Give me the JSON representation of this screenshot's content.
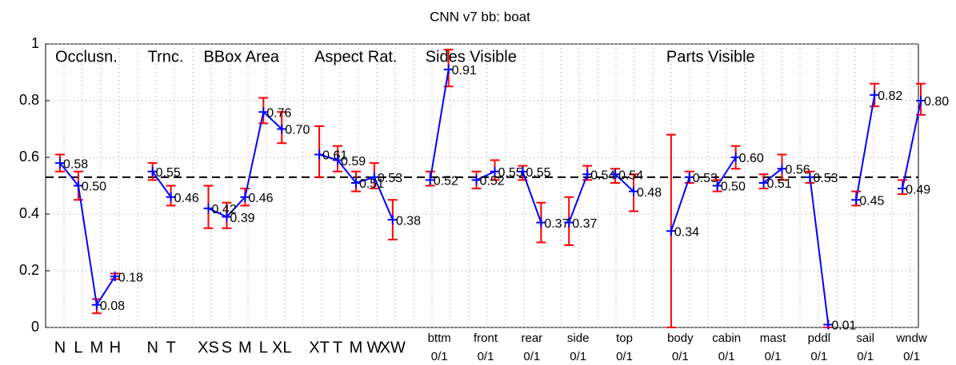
{
  "chart_data": {
    "type": "line",
    "title": "CNN v7 bb: boat",
    "ylim": [
      0,
      1
    ],
    "yticks": [
      0,
      0.2,
      0.4,
      0.6,
      0.8,
      1
    ],
    "grid": true,
    "baseline": 0.53,
    "line_color": "#0000ff",
    "error_color": "#ff0000",
    "groups": [
      {
        "name": "Occlusn.",
        "lines": [
          {
            "categories": [
              "N",
              "L",
              "M",
              "H"
            ],
            "values": [
              0.58,
              0.5,
              0.08,
              0.18
            ],
            "lower": [
              0.55,
              0.45,
              0.05,
              0.17
            ],
            "upper": [
              0.61,
              0.55,
              0.1,
              0.19
            ],
            "value_labels": [
              "0.58",
              "0.50",
              "0.08",
              "0.18"
            ]
          }
        ]
      },
      {
        "name": "Trnc.",
        "lines": [
          {
            "categories": [
              "N",
              "T"
            ],
            "values": [
              0.55,
              0.46
            ],
            "lower": [
              0.52,
              0.43
            ],
            "upper": [
              0.58,
              0.5
            ],
            "value_labels": [
              "0.55",
              "0.46"
            ]
          }
        ]
      },
      {
        "name": "BBox Area",
        "lines": [
          {
            "categories": [
              "XS",
              "S",
              "M",
              "L",
              "XL"
            ],
            "values": [
              0.42,
              0.39,
              0.46,
              0.76,
              0.7
            ],
            "lower": [
              0.35,
              0.35,
              0.43,
              0.72,
              0.65
            ],
            "upper": [
              0.5,
              0.44,
              0.49,
              0.81,
              0.76
            ],
            "value_labels": [
              "0.42",
              "0.39",
              "0.46",
              "0.76",
              "0.70"
            ]
          }
        ]
      },
      {
        "name": "Aspect Rat.",
        "lines": [
          {
            "categories": [
              "XT",
              "T",
              "M",
              "W",
              "XW"
            ],
            "values": [
              0.61,
              0.59,
              0.51,
              0.53,
              0.38
            ],
            "lower": [
              0.53,
              0.55,
              0.48,
              0.49,
              0.31
            ],
            "upper": [
              0.71,
              0.64,
              0.55,
              0.58,
              0.45
            ],
            "value_labels": [
              "0.61",
              "0.59",
              "0.51",
              "0.53",
              "0.38"
            ]
          }
        ]
      },
      {
        "name": "Sides Visible",
        "lines": [
          {
            "label": "bttm",
            "sublabel": "0/1",
            "values": [
              0.52,
              0.91
            ],
            "lower": [
              0.5,
              0.85
            ],
            "upper": [
              0.55,
              0.98
            ],
            "value_labels": [
              "0.52",
              "0.91"
            ]
          },
          {
            "label": "front",
            "sublabel": "0/1",
            "values": [
              0.52,
              0.55
            ],
            "lower": [
              0.49,
              0.52
            ],
            "upper": [
              0.55,
              0.59
            ],
            "value_labels": [
              "0.52",
              "0.55"
            ]
          },
          {
            "label": "rear",
            "sublabel": "0/1",
            "values": [
              0.55,
              0.37
            ],
            "lower": [
              0.52,
              0.3
            ],
            "upper": [
              0.57,
              0.44
            ],
            "value_labels": [
              "0.55",
              "0.37"
            ]
          },
          {
            "label": "side",
            "sublabel": "0/1",
            "values": [
              0.37,
              0.54
            ],
            "lower": [
              0.29,
              0.52
            ],
            "upper": [
              0.46,
              0.57
            ],
            "value_labels": [
              "0.37",
              "0.54"
            ]
          },
          {
            "label": "top",
            "sublabel": "0/1",
            "values": [
              0.54,
              0.48
            ],
            "lower": [
              0.51,
              0.41
            ],
            "upper": [
              0.56,
              0.54
            ],
            "value_labels": [
              "0.54",
              "0.48"
            ]
          }
        ]
      },
      {
        "name": "Parts Visible",
        "lines": [
          {
            "label": "body",
            "sublabel": "0/1",
            "values": [
              0.34,
              0.53
            ],
            "lower": [
              0.0,
              0.51
            ],
            "upper": [
              0.68,
              0.55
            ],
            "value_labels": [
              "0.34",
              "0.53"
            ]
          },
          {
            "label": "cabin",
            "sublabel": "0/1",
            "values": [
              0.5,
              0.6
            ],
            "lower": [
              0.48,
              0.56
            ],
            "upper": [
              0.52,
              0.64
            ],
            "value_labels": [
              "0.50",
              "0.60"
            ]
          },
          {
            "label": "mast",
            "sublabel": "0/1",
            "values": [
              0.51,
              0.56
            ],
            "lower": [
              0.49,
              0.52
            ],
            "upper": [
              0.54,
              0.61
            ],
            "value_labels": [
              "0.51",
              "0.56"
            ]
          },
          {
            "label": "pddl",
            "sublabel": "0/1",
            "values": [
              0.53,
              0.01
            ],
            "lower": [
              0.51,
              0.0
            ],
            "upper": [
              0.55,
              0.01
            ],
            "value_labels": [
              "0.53",
              "0.01"
            ]
          },
          {
            "label": "sail",
            "sublabel": "0/1",
            "values": [
              0.45,
              0.82
            ],
            "lower": [
              0.43,
              0.78
            ],
            "upper": [
              0.48,
              0.86
            ],
            "value_labels": [
              "0.45",
              "0.82"
            ]
          },
          {
            "label": "wndw",
            "sublabel": "0/1",
            "values": [
              0.49,
              0.8
            ],
            "lower": [
              0.47,
              0.75
            ],
            "upper": [
              0.52,
              0.86
            ],
            "value_labels": [
              "0.49",
              "0.80"
            ]
          }
        ]
      }
    ]
  }
}
